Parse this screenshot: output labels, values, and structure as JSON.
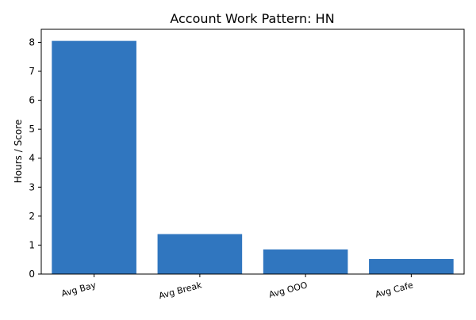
{
  "chart_data": {
    "type": "bar",
    "title": "Account Work Pattern: HN",
    "xlabel": "",
    "ylabel": "Hours / Score",
    "categories": [
      "Avg Bay",
      "Avg Break",
      "Avg OOO",
      "Avg Cafe"
    ],
    "values": [
      8.05,
      1.38,
      0.85,
      0.52
    ],
    "ylim": [
      0,
      8.45
    ],
    "yticks": [
      0,
      1,
      2,
      3,
      4,
      5,
      6,
      7,
      8
    ],
    "grid": false,
    "legend": "none",
    "bar_color": "#3076bf"
  }
}
